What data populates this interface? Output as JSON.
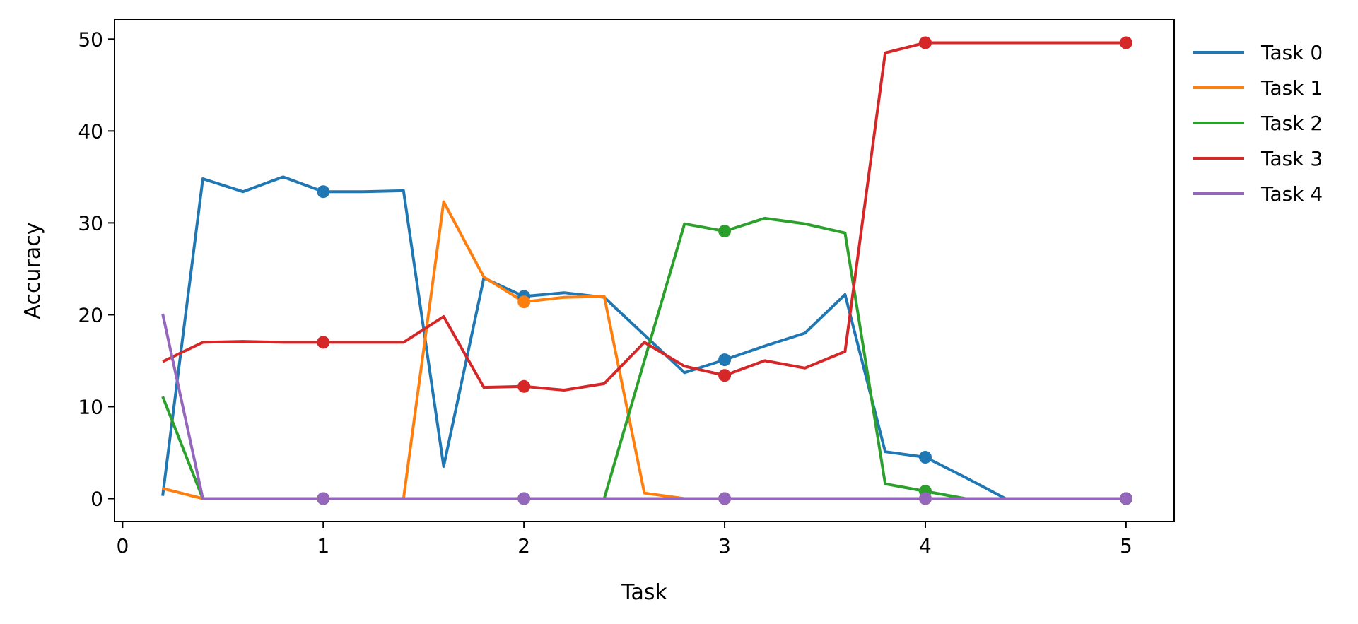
{
  "chart_data": {
    "type": "line",
    "title": "",
    "xlabel": "Task",
    "ylabel": "Accuracy",
    "xlim": [
      -0.04,
      5.24
    ],
    "ylim": [
      -2.5,
      52.1
    ],
    "xticks": [
      0,
      1,
      2,
      3,
      4,
      5
    ],
    "yticks": [
      0,
      10,
      20,
      30,
      40,
      50
    ],
    "grid": false,
    "legend_position": "outside-right",
    "x": [
      0.2,
      0.4,
      0.6,
      0.8,
      1.0,
      1.2,
      1.4,
      1.6,
      1.8,
      2.0,
      2.2,
      2.4,
      2.6,
      2.8,
      3.0,
      3.2,
      3.4,
      3.6,
      3.8,
      4.0,
      4.2,
      4.4,
      4.6,
      4.8,
      5.0
    ],
    "markers_at": [
      1,
      2,
      3,
      4,
      5
    ],
    "series": [
      {
        "name": "Task 0",
        "color": "#1f77b4",
        "values": [
          0.3,
          34.8,
          33.4,
          35.0,
          33.4,
          33.4,
          33.5,
          3.5,
          24.0,
          22.0,
          22.4,
          21.9,
          17.8,
          13.7,
          15.1,
          16.6,
          18.0,
          22.2,
          5.1,
          4.5,
          2.3,
          0.0,
          0.0,
          0.0,
          0.0
        ]
      },
      {
        "name": "Task 1",
        "color": "#ff7f0e",
        "values": [
          1.1,
          0.0,
          0.0,
          0.0,
          0.0,
          0.0,
          0.0,
          32.3,
          24.1,
          21.4,
          21.9,
          22.0,
          0.6,
          0.0,
          0.0,
          0.0,
          0.0,
          0.0,
          0.0,
          0.0,
          0.0,
          0.0,
          0.0,
          0.0,
          0.0
        ]
      },
      {
        "name": "Task 2",
        "color": "#2ca02c",
        "values": [
          11.1,
          0.0,
          0.0,
          0.0,
          0.0,
          0.0,
          0.0,
          0.0,
          0.0,
          0.0,
          0.0,
          0.0,
          15.0,
          29.9,
          29.1,
          30.5,
          29.9,
          28.9,
          1.6,
          0.8,
          0.0,
          0.0,
          0.0,
          0.0,
          0.0
        ]
      },
      {
        "name": "Task 3",
        "color": "#d62728",
        "values": [
          14.9,
          17.0,
          17.1,
          17.0,
          17.0,
          17.0,
          17.0,
          19.8,
          12.1,
          12.2,
          11.8,
          12.5,
          17.0,
          14.4,
          13.4,
          15.0,
          14.2,
          16.0,
          48.5,
          49.6,
          49.6,
          49.6,
          49.6,
          49.6,
          49.6
        ]
      },
      {
        "name": "Task 4",
        "color": "#9467bd",
        "values": [
          20.1,
          0.0,
          0.0,
          0.0,
          0.0,
          0.0,
          0.0,
          0.0,
          0.0,
          0.0,
          0.0,
          0.0,
          0.0,
          0.0,
          0.0,
          0.0,
          0.0,
          0.0,
          0.0,
          0.0,
          0.0,
          0.0,
          0.0,
          0.0,
          0.0
        ]
      }
    ]
  }
}
